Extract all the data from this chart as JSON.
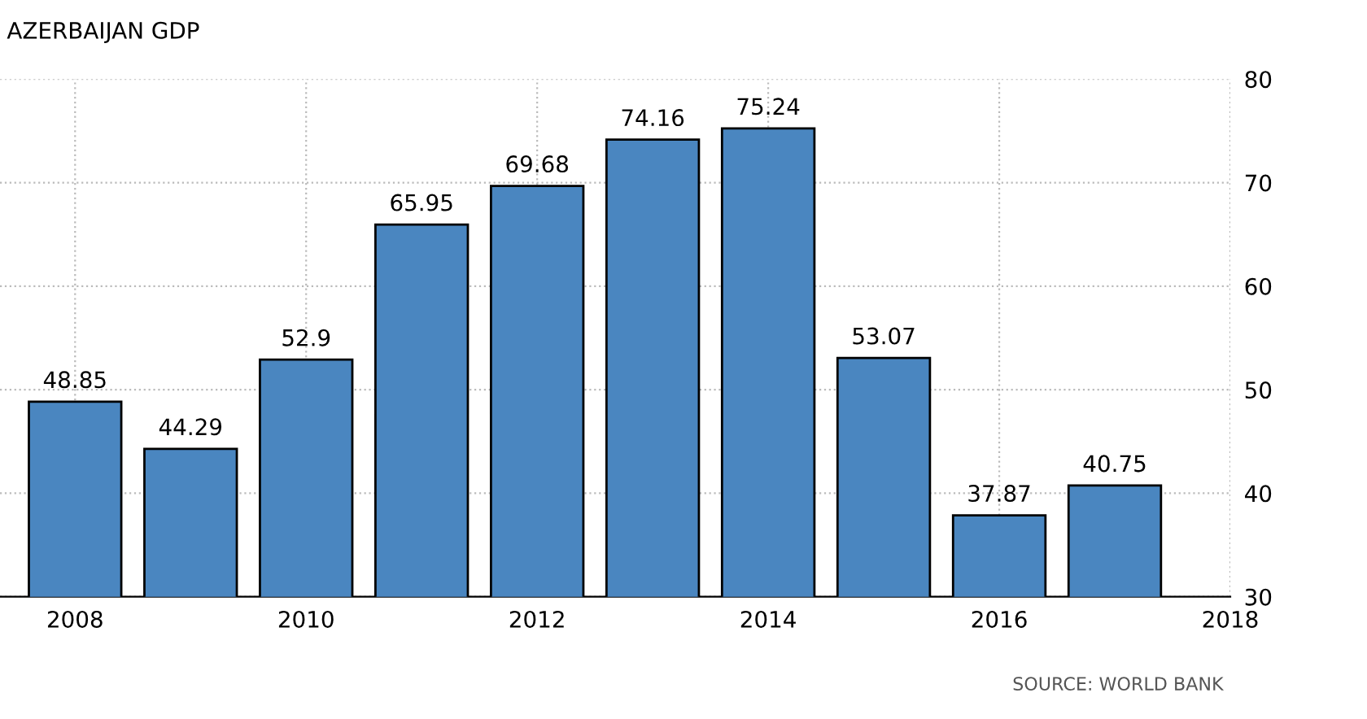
{
  "chart_data": {
    "type": "bar",
    "title": "AZERBAIJAN GDP",
    "x": [
      2008,
      2009,
      2010,
      2011,
      2012,
      2013,
      2014,
      2015,
      2016,
      2017
    ],
    "values": [
      48.85,
      44.29,
      52.9,
      65.95,
      69.68,
      74.16,
      75.24,
      53.07,
      37.87,
      40.75
    ],
    "color": "#4a86c0",
    "data_labels": true,
    "xlim": [
      2007.35,
      2018
    ],
    "xticks": [
      2008,
      2010,
      2012,
      2014,
      2016,
      2018
    ],
    "ylim": [
      30,
      80
    ],
    "yticks": [
      30,
      40,
      50,
      60,
      70,
      80
    ],
    "grid": true,
    "annotations": [
      "SOURCE: WORLD BANK"
    ]
  }
}
